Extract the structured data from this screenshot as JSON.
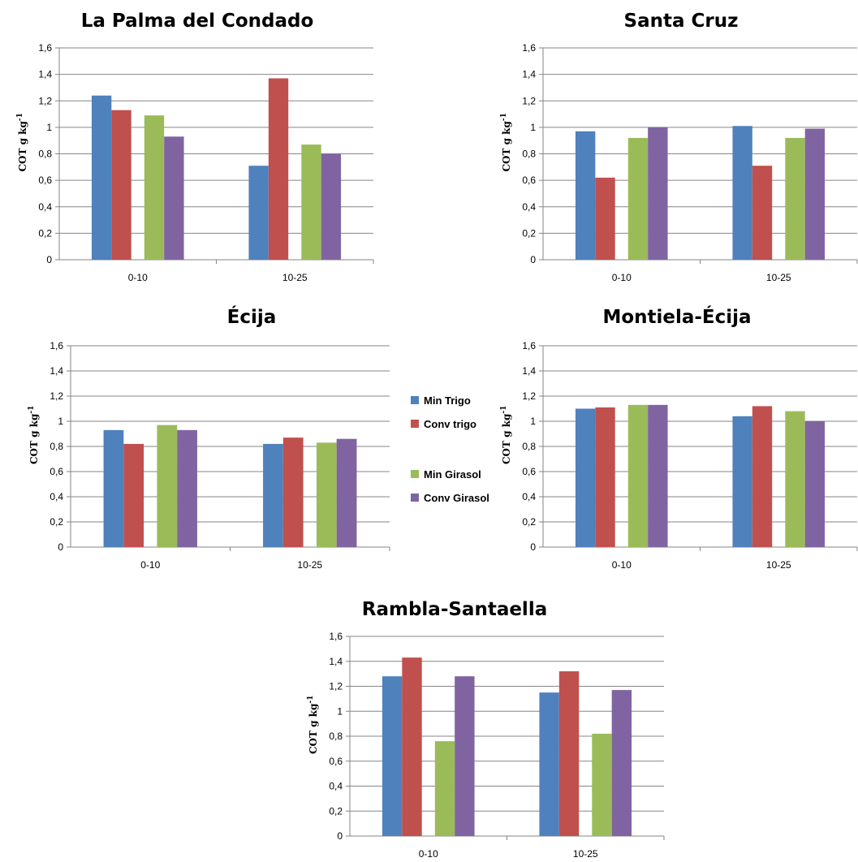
{
  "legend": [
    {
      "name": "Min Trigo",
      "color": "#4F81BD"
    },
    {
      "name": "Conv trigo",
      "color": "#C0504D"
    },
    {
      "name": "Min Girasol",
      "color": "#9BBB59"
    },
    {
      "name": "Conv Girasol",
      "color": "#8064A2"
    }
  ],
  "chart_data": [
    {
      "type": "bar",
      "title": "La Palma del Condado",
      "ylabel": "COT g kg-1",
      "categories": [
        "0-10",
        "10-25"
      ],
      "yticks": [
        "0",
        "0,2",
        "0,4",
        "0,6",
        "0,8",
        "1",
        "1,2",
        "1,4",
        "1,6"
      ],
      "ylim": [
        0,
        1.6
      ],
      "grid": true,
      "series": [
        {
          "name": "Min Trigo",
          "color": "#4F81BD",
          "values": [
            1.24,
            0.71
          ]
        },
        {
          "name": "Conv trigo",
          "color": "#C0504D",
          "values": [
            1.13,
            1.37
          ]
        },
        {
          "name": "Min Girasol",
          "color": "#9BBB59",
          "values": [
            1.09,
            0.87
          ]
        },
        {
          "name": "Conv Girasol",
          "color": "#8064A2",
          "values": [
            0.93,
            0.8
          ]
        }
      ]
    },
    {
      "type": "bar",
      "title": "Santa Cruz",
      "ylabel": "COT g kg-1",
      "categories": [
        "0-10",
        "10-25"
      ],
      "yticks": [
        "0",
        "0,2",
        "0,4",
        "0,6",
        "0,8",
        "1",
        "1,2",
        "1,4",
        "1,6"
      ],
      "ylim": [
        0,
        1.6
      ],
      "grid": true,
      "series": [
        {
          "name": "Min Trigo",
          "color": "#4F81BD",
          "values": [
            0.97,
            1.01
          ]
        },
        {
          "name": "Conv trigo",
          "color": "#C0504D",
          "values": [
            0.62,
            0.71
          ]
        },
        {
          "name": "Min Girasol",
          "color": "#9BBB59",
          "values": [
            0.92,
            0.92
          ]
        },
        {
          "name": "Conv Girasol",
          "color": "#8064A2",
          "values": [
            1.0,
            0.99
          ]
        }
      ]
    },
    {
      "type": "bar",
      "title": "Écija",
      "ylabel": "COT g kg-1",
      "categories": [
        "0-10",
        "10-25"
      ],
      "yticks": [
        "0",
        "0,2",
        "0,4",
        "0,6",
        "0,8",
        "1",
        "1,2",
        "1,4",
        "1,6"
      ],
      "ylim": [
        0,
        1.6
      ],
      "grid": true,
      "series": [
        {
          "name": "Min Trigo",
          "color": "#4F81BD",
          "values": [
            0.93,
            0.82
          ]
        },
        {
          "name": "Conv trigo",
          "color": "#C0504D",
          "values": [
            0.82,
            0.87
          ]
        },
        {
          "name": "Min Girasol",
          "color": "#9BBB59",
          "values": [
            0.97,
            0.83
          ]
        },
        {
          "name": "Conv Girasol",
          "color": "#8064A2",
          "values": [
            0.93,
            0.86
          ]
        }
      ]
    },
    {
      "type": "bar",
      "title": "Montiela-Écija",
      "ylabel": "COT g kg-1",
      "categories": [
        "0-10",
        "10-25"
      ],
      "yticks": [
        "0",
        "0,2",
        "0,4",
        "0,6",
        "0,8",
        "1",
        "1,2",
        "1,4",
        "1,6"
      ],
      "ylim": [
        0,
        1.6
      ],
      "grid": true,
      "series": [
        {
          "name": "Min Trigo",
          "color": "#4F81BD",
          "values": [
            1.1,
            1.04
          ]
        },
        {
          "name": "Conv trigo",
          "color": "#C0504D",
          "values": [
            1.11,
            1.12
          ]
        },
        {
          "name": "Min Girasol",
          "color": "#9BBB59",
          "values": [
            1.13,
            1.08
          ]
        },
        {
          "name": "Conv Girasol",
          "color": "#8064A2",
          "values": [
            1.13,
            1.0
          ]
        }
      ]
    },
    {
      "type": "bar",
      "title": "Rambla-Santaella",
      "ylabel": "COT g kg-1",
      "categories": [
        "0-10",
        "10-25"
      ],
      "yticks": [
        "0",
        "0,2",
        "0,4",
        "0,6",
        "0,8",
        "1",
        "1,2",
        "1,4",
        "1,6"
      ],
      "ylim": [
        0,
        1.6
      ],
      "grid": true,
      "series": [
        {
          "name": "Min Trigo",
          "color": "#4F81BD",
          "values": [
            1.28,
            1.15
          ]
        },
        {
          "name": "Conv trigo",
          "color": "#C0504D",
          "values": [
            1.43,
            1.32
          ]
        },
        {
          "name": "Min Girasol",
          "color": "#9BBB59",
          "values": [
            0.76,
            0.82
          ]
        },
        {
          "name": "Conv Girasol",
          "color": "#8064A2",
          "values": [
            1.28,
            1.17
          ]
        }
      ]
    }
  ]
}
